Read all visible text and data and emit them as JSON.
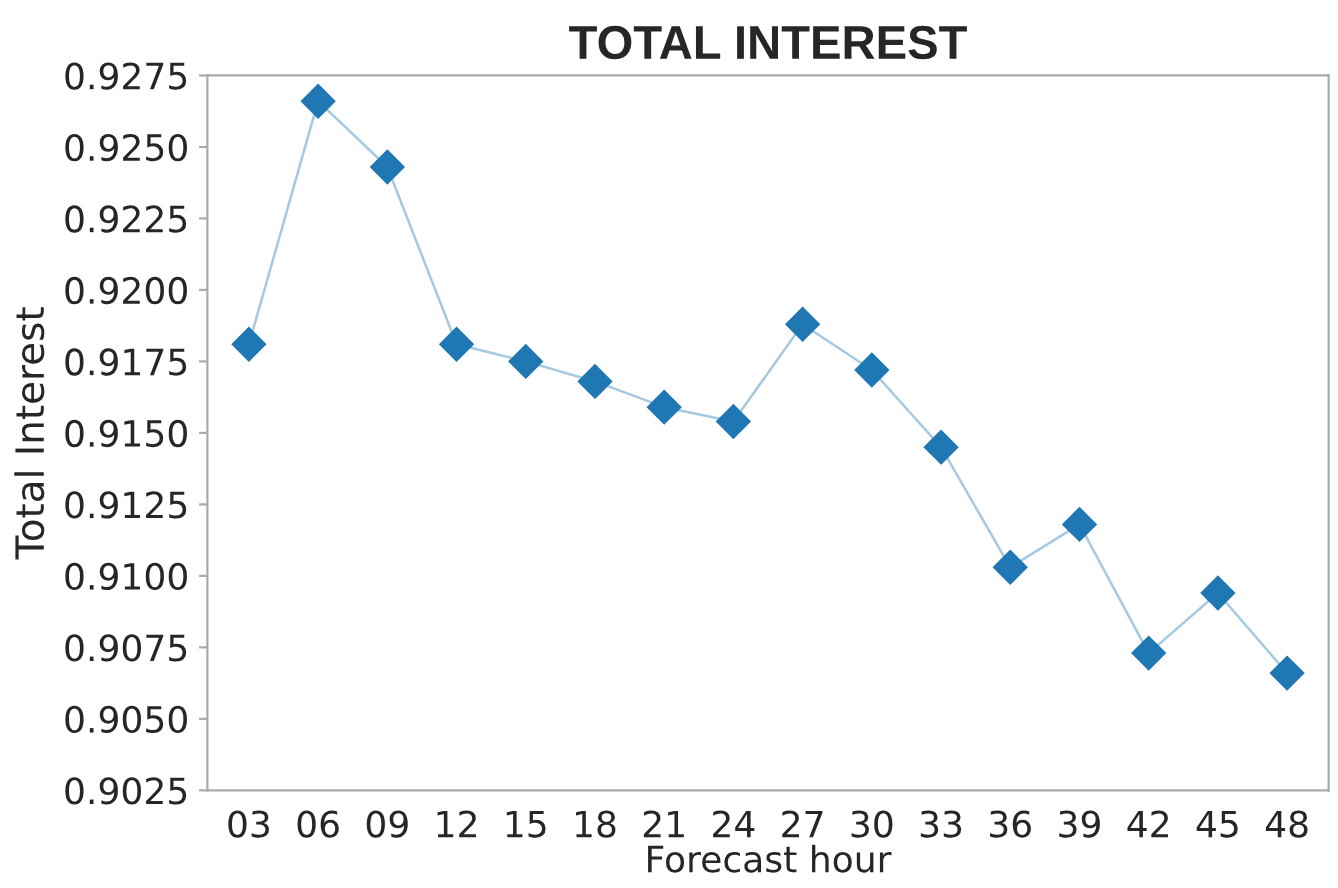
{
  "chart_data": {
    "type": "line",
    "title": "TOTAL INTEREST",
    "xlabel": "Forecast hour",
    "ylabel": "Total Interest",
    "categories": [
      "03",
      "06",
      "09",
      "12",
      "15",
      "18",
      "21",
      "24",
      "27",
      "30",
      "33",
      "36",
      "39",
      "42",
      "45",
      "48"
    ],
    "series": [
      {
        "color": "#1f77b4",
        "values": [
          0.9181,
          0.9266,
          0.9243,
          0.9181,
          0.9175,
          0.9168,
          0.9159,
          0.9154,
          0.9188,
          0.9172,
          0.9145,
          0.9103,
          0.9118,
          0.9073,
          0.9094,
          0.9066
        ]
      }
    ],
    "ylim": [
      0.9025,
      0.9275
    ],
    "yticks": [
      {
        "value": 0.9025,
        "label": "0.9025"
      },
      {
        "value": 0.905,
        "label": "0.9050"
      },
      {
        "value": 0.9075,
        "label": "0.9075"
      },
      {
        "value": 0.91,
        "label": "0.9100"
      },
      {
        "value": 0.9125,
        "label": "0.9125"
      },
      {
        "value": 0.915,
        "label": "0.9150"
      },
      {
        "value": 0.9175,
        "label": "0.9175"
      },
      {
        "value": 0.92,
        "label": "0.9200"
      },
      {
        "value": 0.9225,
        "label": "0.9225"
      },
      {
        "value": 0.925,
        "label": "0.9250"
      },
      {
        "value": 0.9275,
        "label": "0.9275"
      }
    ],
    "marker": "diamond",
    "line_style": "solid",
    "grid": false,
    "legend": false
  }
}
